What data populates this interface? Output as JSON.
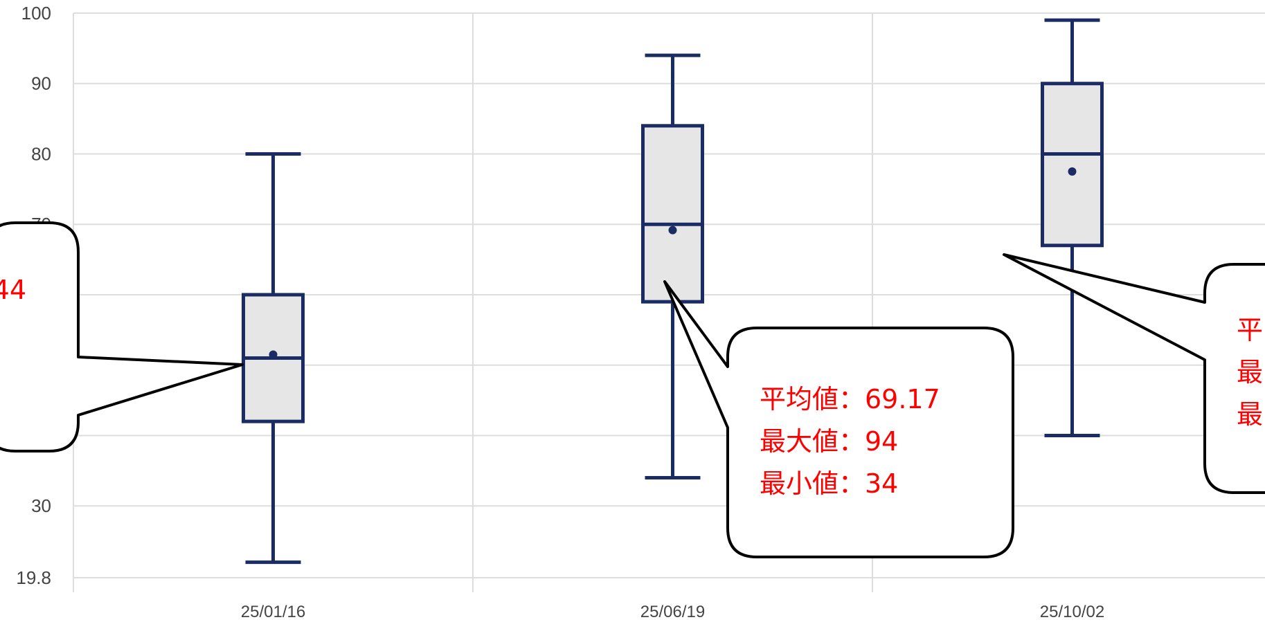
{
  "chart_data": {
    "type": "boxplot",
    "yticks": [
      19.8,
      30,
      40,
      50,
      60,
      70,
      80,
      90,
      100
    ],
    "ytick_labels": [
      "19.8",
      "30",
      "",
      "",
      "",
      "70",
      "80",
      "90",
      "100"
    ],
    "ylim": [
      19.8,
      100
    ],
    "grid": true,
    "categories": [
      "",
      "25/01/16",
      "25/06/19",
      "25/10/02"
    ],
    "boxes": [
      {
        "category": "25/01/16",
        "min": 22,
        "q1": 42,
        "median": 51,
        "q3": 60,
        "max": 80,
        "mean": 51.5
      },
      {
        "category": "25/06/19",
        "min": 34,
        "q1": 59,
        "median": 70,
        "q3": 84,
        "max": 94,
        "mean": 69.17
      },
      {
        "category": "25/10/02",
        "min": 40,
        "q1": 67,
        "median": 80,
        "q3": 90,
        "max": 99,
        "mean": 77.5
      }
    ],
    "callouts": [
      {
        "box": 0,
        "lines": [
          "44"
        ]
      },
      {
        "box": 1,
        "lines": [
          "平均値：69.17",
          "最大値：94",
          "最小値：34"
        ]
      },
      {
        "box": 2,
        "lines": [
          "平",
          "最",
          "最"
        ]
      }
    ],
    "colors": {
      "box_stroke": "#1b2b63",
      "box_fill": "#e6e6e6",
      "callout_text": "#ff0000"
    }
  }
}
